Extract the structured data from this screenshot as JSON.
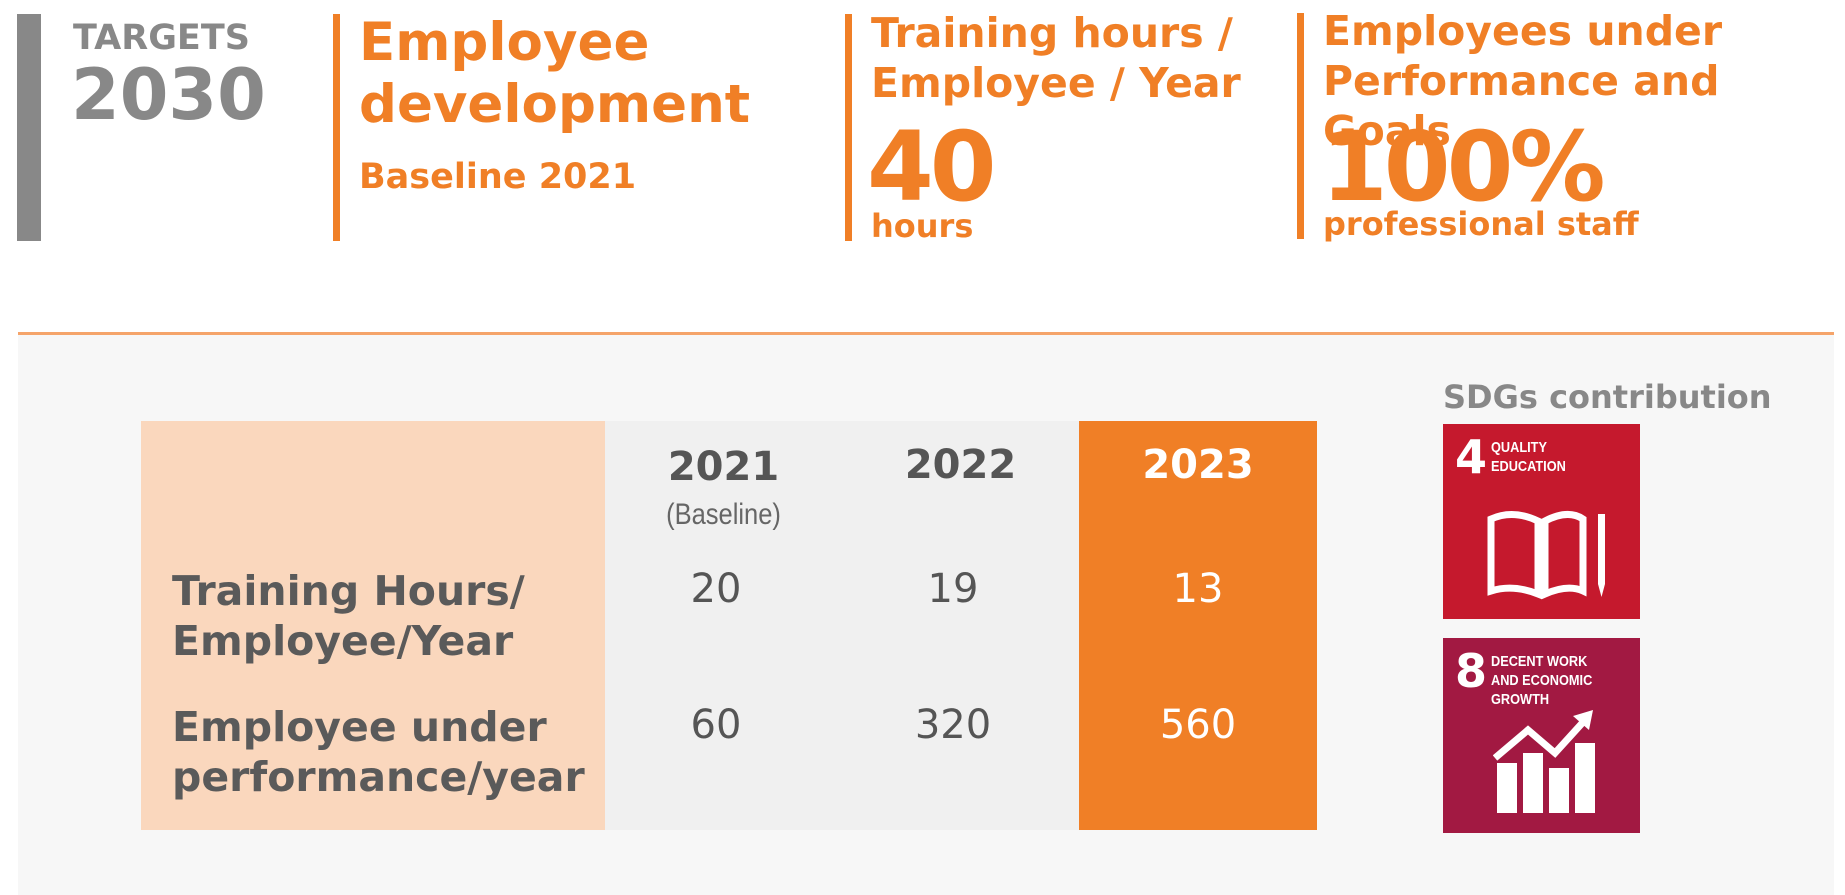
{
  "header": {
    "targets_label": "TARGETS",
    "year": "2030",
    "title": "Employee development",
    "subtitle": "Baseline 2021"
  },
  "targets": [
    {
      "title": "Training hours / Employee / Year",
      "value": "40",
      "unit": "hours"
    },
    {
      "title": "Employees under Performance and Goals",
      "value": "100%",
      "unit": "professional staff"
    }
  ],
  "table": {
    "columns": [
      "2021",
      "2022",
      "2023"
    ],
    "column_note": "(Baseline)",
    "rows": [
      {
        "label": "Training Hours/ Employee/Year",
        "values": [
          20,
          19,
          13
        ]
      },
      {
        "label": "Employee under performance/year",
        "values": [
          60,
          320,
          560
        ]
      }
    ]
  },
  "sdgs": {
    "title": "SDGs contribution",
    "goals": [
      {
        "number": "4",
        "name": "QUALITY EDUCATION"
      },
      {
        "number": "8",
        "name": "DECENT WORK AND ECONOMIC GROWTH"
      }
    ]
  }
}
